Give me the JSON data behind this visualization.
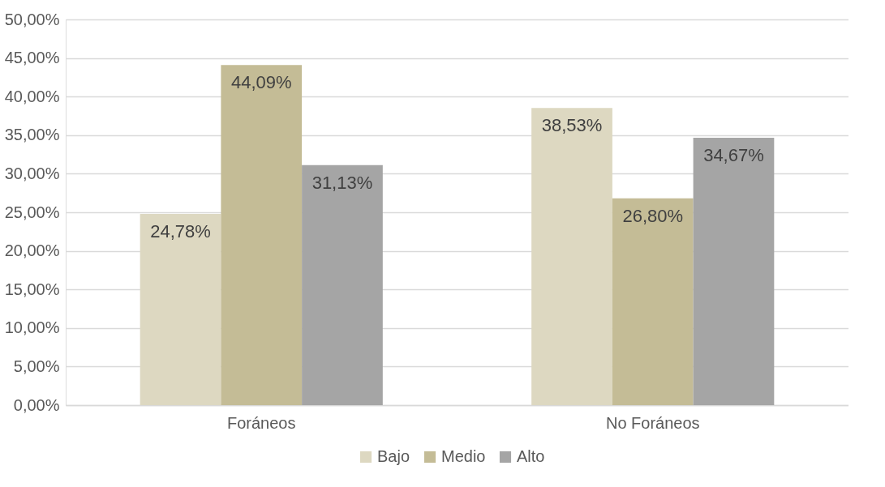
{
  "chart_data": {
    "type": "bar",
    "categories": [
      "Foráneos",
      "No Foráneos"
    ],
    "series": [
      {
        "name": "Bajo",
        "color": "#ddd8c1",
        "values": [
          24.78,
          38.53
        ],
        "value_labels": [
          "24,78%",
          "38,53%"
        ]
      },
      {
        "name": "Medio",
        "color": "#c4bc96",
        "values": [
          44.09,
          26.8
        ],
        "value_labels": [
          "44,09%",
          "26,80%"
        ]
      },
      {
        "name": "Alto",
        "color": "#a5a5a5",
        "values": [
          31.13,
          34.67
        ],
        "value_labels": [
          "31,13%",
          "34,67%"
        ]
      }
    ],
    "ylim": [
      0,
      50
    ],
    "yticks": [
      {
        "value": 0,
        "label": "0,00%"
      },
      {
        "value": 5,
        "label": "5,00%"
      },
      {
        "value": 10,
        "label": "10,00%"
      },
      {
        "value": 15,
        "label": "15,00%"
      },
      {
        "value": 20,
        "label": "20,00%"
      },
      {
        "value": 25,
        "label": "25,00%"
      },
      {
        "value": 30,
        "label": "30,00%"
      },
      {
        "value": 35,
        "label": "35,00%"
      },
      {
        "value": 40,
        "label": "40,00%"
      },
      {
        "value": 45,
        "label": "45,00%"
      },
      {
        "value": 50,
        "label": "50,00%"
      }
    ],
    "grid": "y",
    "legend": "bottom"
  }
}
